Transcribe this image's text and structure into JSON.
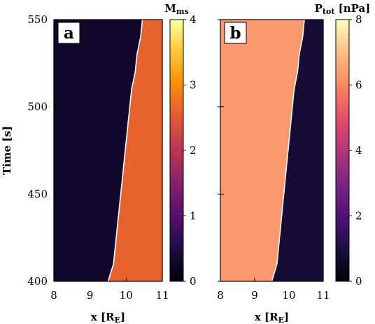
{
  "chart_data": [
    {
      "type": "heatmap",
      "panel_label": "a",
      "colorbar_title": "M",
      "colorbar_title_sub": "ms",
      "xlabel": "x [R",
      "xlabel_sub": "E",
      "xlabel_suffix": "]",
      "ylabel": "Time [s]",
      "x_ticks": [
        8,
        9,
        10,
        11
      ],
      "y_ticks": [
        400,
        450,
        500,
        550
      ],
      "xlim": [
        8,
        11
      ],
      "ylim": [
        400,
        550
      ],
      "colorbar_ticks": [
        0,
        1,
        2,
        3,
        4
      ],
      "colorbar_range": [
        0,
        4
      ],
      "colormap": "inferno",
      "regions": [
        {
          "name": "upstream (left of boundary)",
          "level": 0.3
        },
        {
          "name": "downstream (right of boundary)",
          "level": 2.6
        }
      ],
      "boundary": {
        "color": "#ffffff",
        "points": [
          [
            9.5,
            400
          ],
          [
            9.65,
            410
          ],
          [
            9.7,
            420
          ],
          [
            9.75,
            430
          ],
          [
            9.8,
            440
          ],
          [
            9.85,
            450
          ],
          [
            9.9,
            460
          ],
          [
            9.95,
            470
          ],
          [
            10.0,
            480
          ],
          [
            10.05,
            490
          ],
          [
            10.1,
            500
          ],
          [
            10.15,
            510
          ],
          [
            10.25,
            520
          ],
          [
            10.3,
            530
          ],
          [
            10.4,
            540
          ],
          [
            10.45,
            550
          ]
        ]
      }
    },
    {
      "type": "heatmap",
      "panel_label": "b",
      "colorbar_title": "P",
      "colorbar_title_sub": "tot",
      "colorbar_title_suffix": " [nPa]",
      "xlabel": "x [R",
      "xlabel_sub": "E",
      "xlabel_suffix": "]",
      "x_ticks": [
        8,
        9,
        10,
        11
      ],
      "y_ticks": [
        400,
        450,
        500,
        550
      ],
      "xlim": [
        8,
        11
      ],
      "ylim": [
        400,
        550
      ],
      "colorbar_ticks": [
        0,
        2,
        4,
        6,
        8
      ],
      "colorbar_range": [
        0,
        8
      ],
      "colormap": "magma",
      "regions": [
        {
          "name": "upstream (left of boundary)",
          "level": 6.3
        },
        {
          "name": "downstream (right of boundary)",
          "level": 0.8
        }
      ],
      "boundary": {
        "color": "#ffffff",
        "points": [
          [
            9.5,
            400
          ],
          [
            9.65,
            410
          ],
          [
            9.7,
            420
          ],
          [
            9.75,
            430
          ],
          [
            9.8,
            440
          ],
          [
            9.85,
            450
          ],
          [
            9.9,
            460
          ],
          [
            9.95,
            470
          ],
          [
            10.0,
            480
          ],
          [
            10.05,
            490
          ],
          [
            10.1,
            500
          ],
          [
            10.15,
            510
          ],
          [
            10.25,
            520
          ],
          [
            10.3,
            530
          ],
          [
            10.4,
            540
          ],
          [
            10.45,
            550
          ]
        ]
      }
    }
  ]
}
